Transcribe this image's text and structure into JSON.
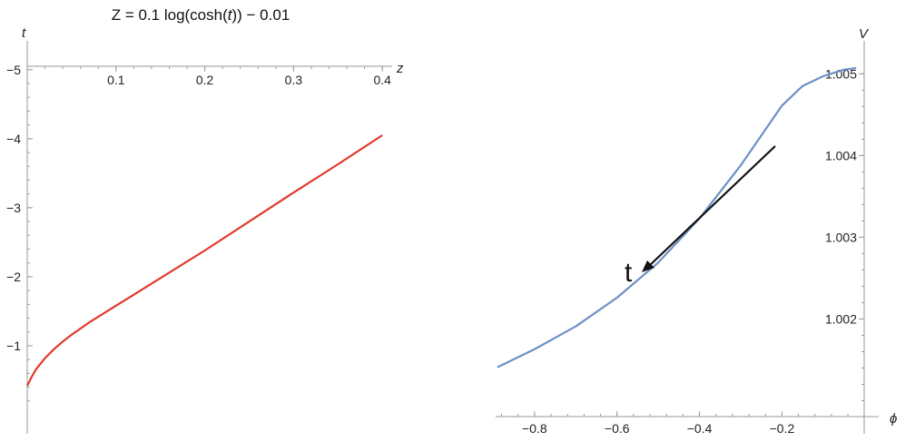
{
  "chart_data": [
    {
      "type": "line",
      "title_parts": [
        "Z = 0.1 log(cosh(",
        "t",
        ")) − 0.01"
      ],
      "xlabel": "z",
      "ylabel": "t",
      "xlim": [
        0,
        0.41
      ],
      "ylim": [
        -5.05,
        0
      ],
      "x_ticks": [
        0.1,
        0.2,
        0.3,
        0.4
      ],
      "x_tick_labels": [
        "0.1",
        "0.2",
        "0.3",
        "0.4"
      ],
      "y_ticks": [
        -1,
        -2,
        -3,
        -4,
        -5
      ],
      "y_tick_labels": [
        "−1",
        "−2",
        "−3",
        "−4",
        "−5"
      ],
      "series": [
        {
          "color": "#e03a2b",
          "x": [
            0.0,
            0.005,
            0.01,
            0.02,
            0.03,
            0.04,
            0.05,
            0.07,
            0.09,
            0.12,
            0.15,
            0.2,
            0.25,
            0.3,
            0.35,
            0.4
          ],
          "y": [
            -0.42,
            -0.55,
            -0.66,
            -0.82,
            -0.95,
            -1.06,
            -1.16,
            -1.34,
            -1.5,
            -1.74,
            -1.98,
            -2.38,
            -2.8,
            -3.22,
            -3.63,
            -4.05
          ]
        }
      ]
    },
    {
      "type": "line",
      "xlabel": "ϕ",
      "ylabel": "V",
      "xlim": [
        -0.89,
        -0.005
      ],
      "ylim": [
        1.00095,
        1.00507
      ],
      "x_ticks": [
        -0.8,
        -0.6,
        -0.4,
        -0.2
      ],
      "x_tick_labels": [
        "−0.8",
        "−0.6",
        "−0.4",
        "−0.2"
      ],
      "y_ticks": [
        1.002,
        1.003,
        1.004,
        1.005
      ],
      "y_tick_labels": [
        "1.002",
        "1.003",
        "1.004",
        "1.005"
      ],
      "annotation": {
        "text": "t"
      },
      "series": [
        {
          "color": "#6f8fc6",
          "x": [
            -0.89,
            -0.8,
            -0.7,
            -0.6,
            -0.5,
            -0.4,
            -0.3,
            -0.2,
            -0.15,
            -0.1,
            -0.05,
            -0.02
          ],
          "y": [
            1.00141,
            1.00163,
            1.00191,
            1.00226,
            1.00269,
            1.00323,
            1.00388,
            1.00461,
            1.00485,
            1.00497,
            1.00505,
            1.00507
          ]
        }
      ]
    }
  ]
}
